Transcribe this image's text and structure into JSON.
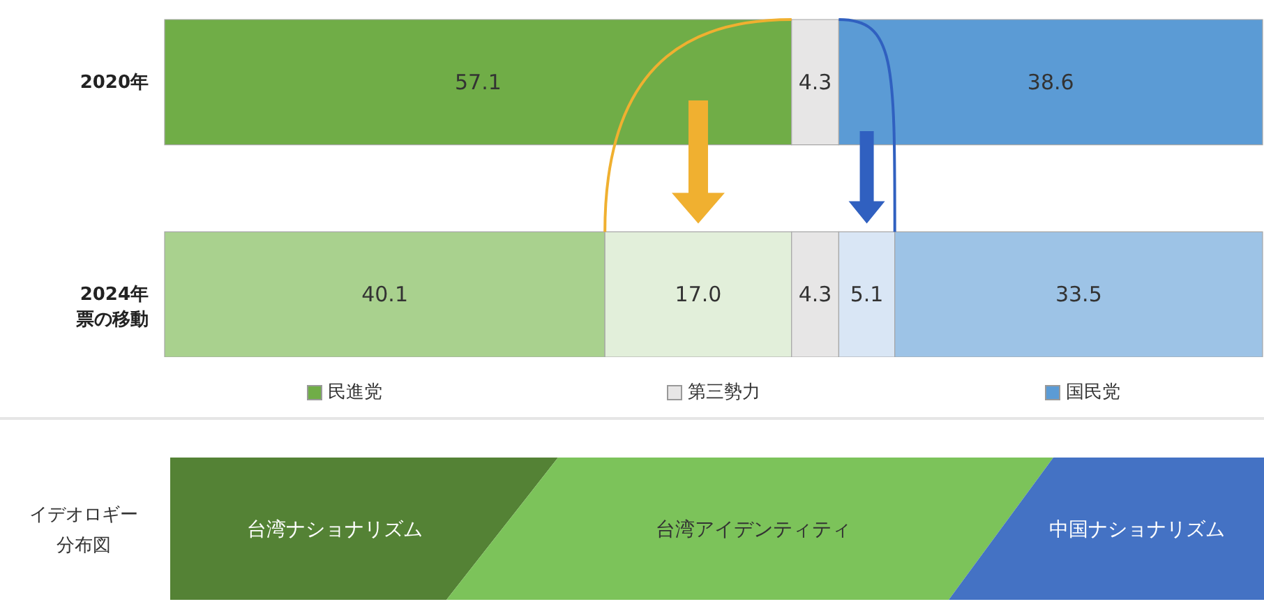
{
  "chart_data": {
    "type": "bar",
    "orientation": "horizontal",
    "stacked": true,
    "categories": [
      "2020年",
      "2024年票の移動"
    ],
    "series": [
      {
        "name": "民進党",
        "color": "#70ad47",
        "colors": [
          "#70ad47",
          "#a9d18e"
        ],
        "values": [
          57.1,
          40.1
        ],
        "value_labels": [
          "57.1",
          "40.1"
        ]
      },
      {
        "color": "#e2efda",
        "values": [
          null,
          17.0
        ],
        "value_labels": [
          null,
          "17.0"
        ]
      },
      {
        "name": "第三勢力",
        "color": "#e7e6e6",
        "values": [
          4.3,
          4.3
        ],
        "value_labels": [
          "4.3",
          "4.3"
        ]
      },
      {
        "color": "#d9e6f5",
        "values": [
          null,
          5.1
        ],
        "value_labels": [
          null,
          "5.1"
        ]
      },
      {
        "name": "国民党",
        "color": "#5b9bd5",
        "colors": [
          "#5b9bd5",
          "#9dc3e6"
        ],
        "values": [
          38.6,
          33.5
        ],
        "value_labels": [
          "38.6",
          "33.5"
        ]
      }
    ],
    "legend": "bottom",
    "grid": false,
    "tick_labels": "y",
    "annotations": [
      "イデオロギー分布図",
      "台湾ナショナリズム",
      "台湾アイデンティティ",
      "中国ナショナリズム"
    ]
  }
}
